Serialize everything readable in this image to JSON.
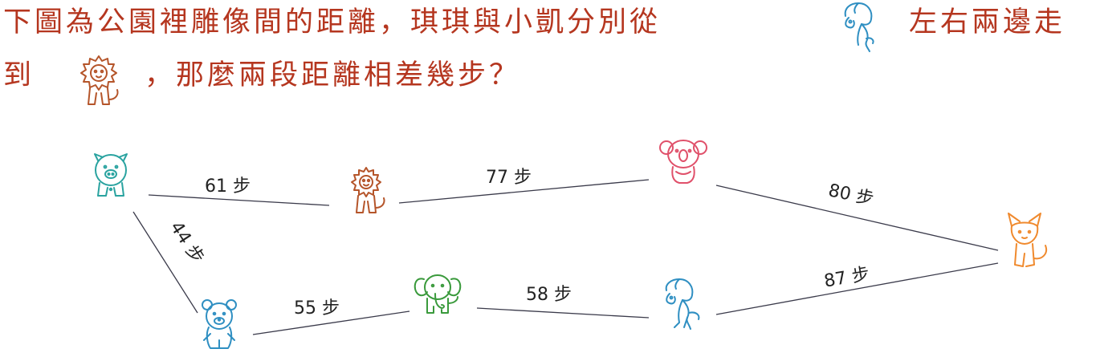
{
  "question": {
    "line1_a": "下圖為公園裡雕像間的距離，琪琪與小凱分別從",
    "line1_b": "左右兩邊走",
    "line2_a": "到",
    "line2_b": "，那麼兩段距離相差幾步？",
    "icon_start": "horse-icon",
    "icon_end": "lion-icon",
    "color": "#b5361f"
  },
  "diagram": {
    "nodes": [
      {
        "id": "pig",
        "icon": "pig-icon",
        "color": "#2aa3a0"
      },
      {
        "id": "lion",
        "icon": "lion-icon",
        "color": "#b5552a"
      },
      {
        "id": "koala",
        "icon": "koala-icon",
        "color": "#e0506a"
      },
      {
        "id": "fox",
        "icon": "fox-icon",
        "color": "#f08a2e"
      },
      {
        "id": "bear",
        "icon": "bear-icon",
        "color": "#2f8fc2"
      },
      {
        "id": "elephant",
        "icon": "elephant-icon",
        "color": "#3a9a3c"
      },
      {
        "id": "horse",
        "icon": "horse-icon",
        "color": "#2f8fc2"
      }
    ],
    "edges": [
      {
        "from": "pig",
        "to": "lion",
        "label": "61 步"
      },
      {
        "from": "lion",
        "to": "koala",
        "label": "77 步"
      },
      {
        "from": "koala",
        "to": "fox",
        "label": "80 步"
      },
      {
        "from": "pig",
        "to": "bear",
        "label": "44 步"
      },
      {
        "from": "bear",
        "to": "elephant",
        "label": "55 步"
      },
      {
        "from": "elephant",
        "to": "horse",
        "label": "58 步"
      },
      {
        "from": "horse",
        "to": "fox",
        "label": "87 步"
      }
    ]
  }
}
